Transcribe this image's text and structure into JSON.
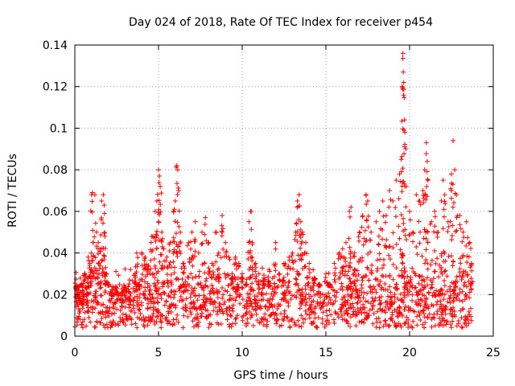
{
  "chart_data": {
    "type": "scatter",
    "title": "Day 024 of 2018, Rate Of TEC Index for receiver p454",
    "xlabel": "GPS time / hours",
    "ylabel": "ROTI / TECUs",
    "xlim": [
      0,
      25
    ],
    "ylim": [
      0,
      0.14
    ],
    "x_ticks": [
      0,
      5,
      10,
      15,
      20,
      25
    ],
    "y_ticks": [
      0,
      0.02,
      0.04,
      0.06,
      0.08,
      0.1,
      0.12,
      0.14
    ],
    "x_tick_labels": [
      "0",
      "5",
      "10",
      "15",
      "20",
      "25"
    ],
    "y_tick_labels": [
      "0",
      "0.02",
      "0.04",
      "0.06",
      "0.08",
      "0.1",
      "0.12",
      "0.14"
    ],
    "grid": true,
    "marker": "plus",
    "color": "#ff0000",
    "series": [
      {
        "name": "ROTI",
        "points": [
          [
            0.1,
            0.022
          ],
          [
            0.2,
            0.018
          ],
          [
            0.3,
            0.012
          ],
          [
            0.4,
            0.025
          ],
          [
            0.5,
            0.015
          ],
          [
            0.6,
            0.03
          ],
          [
            0.7,
            0.02
          ],
          [
            0.8,
            0.038
          ],
          [
            0.9,
            0.035
          ],
          [
            1.0,
            0.068
          ],
          [
            1.05,
            0.069
          ],
          [
            1.1,
            0.045
          ],
          [
            1.2,
            0.068
          ],
          [
            1.3,
            0.05
          ],
          [
            1.4,
            0.045
          ],
          [
            1.5,
            0.042
          ],
          [
            1.6,
            0.065
          ],
          [
            1.7,
            0.068
          ],
          [
            1.75,
            0.063
          ],
          [
            1.8,
            0.048
          ],
          [
            1.9,
            0.03
          ],
          [
            2.0,
            0.025
          ],
          [
            2.2,
            0.018
          ],
          [
            2.5,
            0.02
          ],
          [
            2.8,
            0.016
          ],
          [
            3.0,
            0.014
          ],
          [
            3.3,
            0.017
          ],
          [
            3.6,
            0.03
          ],
          [
            3.7,
            0.04
          ],
          [
            3.8,
            0.025
          ],
          [
            4.0,
            0.04
          ],
          [
            4.2,
            0.038
          ],
          [
            4.4,
            0.034
          ],
          [
            4.6,
            0.048
          ],
          [
            4.8,
            0.06
          ],
          [
            4.9,
            0.065
          ],
          [
            5.0,
            0.08
          ],
          [
            5.05,
            0.077
          ],
          [
            5.1,
            0.072
          ],
          [
            5.2,
            0.05
          ],
          [
            5.3,
            0.042
          ],
          [
            5.5,
            0.038
          ],
          [
            5.7,
            0.045
          ],
          [
            5.9,
            0.06
          ],
          [
            6.0,
            0.065
          ],
          [
            6.1,
            0.082
          ],
          [
            6.15,
            0.08
          ],
          [
            6.2,
            0.07
          ],
          [
            6.3,
            0.05
          ],
          [
            6.5,
            0.035
          ],
          [
            6.8,
            0.045
          ],
          [
            7.0,
            0.05
          ],
          [
            7.2,
            0.055
          ],
          [
            7.4,
            0.04
          ],
          [
            7.6,
            0.05
          ],
          [
            7.8,
            0.057
          ],
          [
            8.0,
            0.045
          ],
          [
            8.2,
            0.035
          ],
          [
            8.4,
            0.05
          ],
          [
            8.6,
            0.04
          ],
          [
            8.8,
            0.058
          ],
          [
            9.0,
            0.045
          ],
          [
            9.2,
            0.038
          ],
          [
            9.4,
            0.03
          ],
          [
            9.6,
            0.038
          ],
          [
            9.8,
            0.035
          ],
          [
            10.0,
            0.03
          ],
          [
            10.2,
            0.025
          ],
          [
            10.4,
            0.055
          ],
          [
            10.5,
            0.06
          ],
          [
            10.6,
            0.045
          ],
          [
            10.8,
            0.035
          ],
          [
            11.0,
            0.03
          ],
          [
            11.3,
            0.028
          ],
          [
            11.6,
            0.032
          ],
          [
            12.0,
            0.045
          ],
          [
            12.2,
            0.03
          ],
          [
            12.5,
            0.035
          ],
          [
            12.8,
            0.038
          ],
          [
            13.0,
            0.04
          ],
          [
            13.2,
            0.05
          ],
          [
            13.3,
            0.065
          ],
          [
            13.4,
            0.068
          ],
          [
            13.5,
            0.055
          ],
          [
            13.6,
            0.05
          ],
          [
            13.8,
            0.045
          ],
          [
            14.0,
            0.035
          ],
          [
            14.3,
            0.028
          ],
          [
            14.6,
            0.025
          ],
          [
            15.0,
            0.03
          ],
          [
            15.2,
            0.025
          ],
          [
            15.5,
            0.035
          ],
          [
            15.8,
            0.04
          ],
          [
            16.0,
            0.042
          ],
          [
            16.2,
            0.045
          ],
          [
            16.4,
            0.06
          ],
          [
            16.5,
            0.062
          ],
          [
            16.7,
            0.04
          ],
          [
            17.0,
            0.05
          ],
          [
            17.2,
            0.058
          ],
          [
            17.4,
            0.068
          ],
          [
            17.5,
            0.065
          ],
          [
            17.7,
            0.05
          ],
          [
            18.0,
            0.055
          ],
          [
            18.2,
            0.06
          ],
          [
            18.4,
            0.065
          ],
          [
            18.6,
            0.058
          ],
          [
            18.8,
            0.07
          ],
          [
            19.0,
            0.065
          ],
          [
            19.2,
            0.075
          ],
          [
            19.4,
            0.078
          ],
          [
            19.5,
            0.085
          ],
          [
            19.55,
            0.12
          ],
          [
            19.6,
            0.136
          ],
          [
            19.62,
            0.127
          ],
          [
            19.65,
            0.122
          ],
          [
            19.7,
            0.104
          ],
          [
            19.72,
            0.098
          ],
          [
            19.8,
            0.072
          ],
          [
            20.0,
            0.06
          ],
          [
            20.2,
            0.05
          ],
          [
            20.4,
            0.068
          ],
          [
            20.6,
            0.065
          ],
          [
            20.8,
            0.07
          ],
          [
            20.9,
            0.08
          ],
          [
            21.0,
            0.093
          ],
          [
            21.05,
            0.084
          ],
          [
            21.1,
            0.075
          ],
          [
            21.3,
            0.055
          ],
          [
            21.5,
            0.06
          ],
          [
            21.7,
            0.05
          ],
          [
            21.9,
            0.065
          ],
          [
            22.0,
            0.075
          ],
          [
            22.1,
            0.068
          ],
          [
            22.3,
            0.055
          ],
          [
            22.5,
            0.078
          ],
          [
            22.6,
            0.094
          ],
          [
            22.7,
            0.08
          ],
          [
            22.8,
            0.068
          ],
          [
            23.0,
            0.058
          ],
          [
            23.2,
            0.05
          ],
          [
            23.4,
            0.055
          ],
          [
            23.6,
            0.045
          ],
          [
            23.7,
            0.035
          ]
        ],
        "baseline_band": [
          0.004,
          0.024
        ]
      }
    ]
  }
}
